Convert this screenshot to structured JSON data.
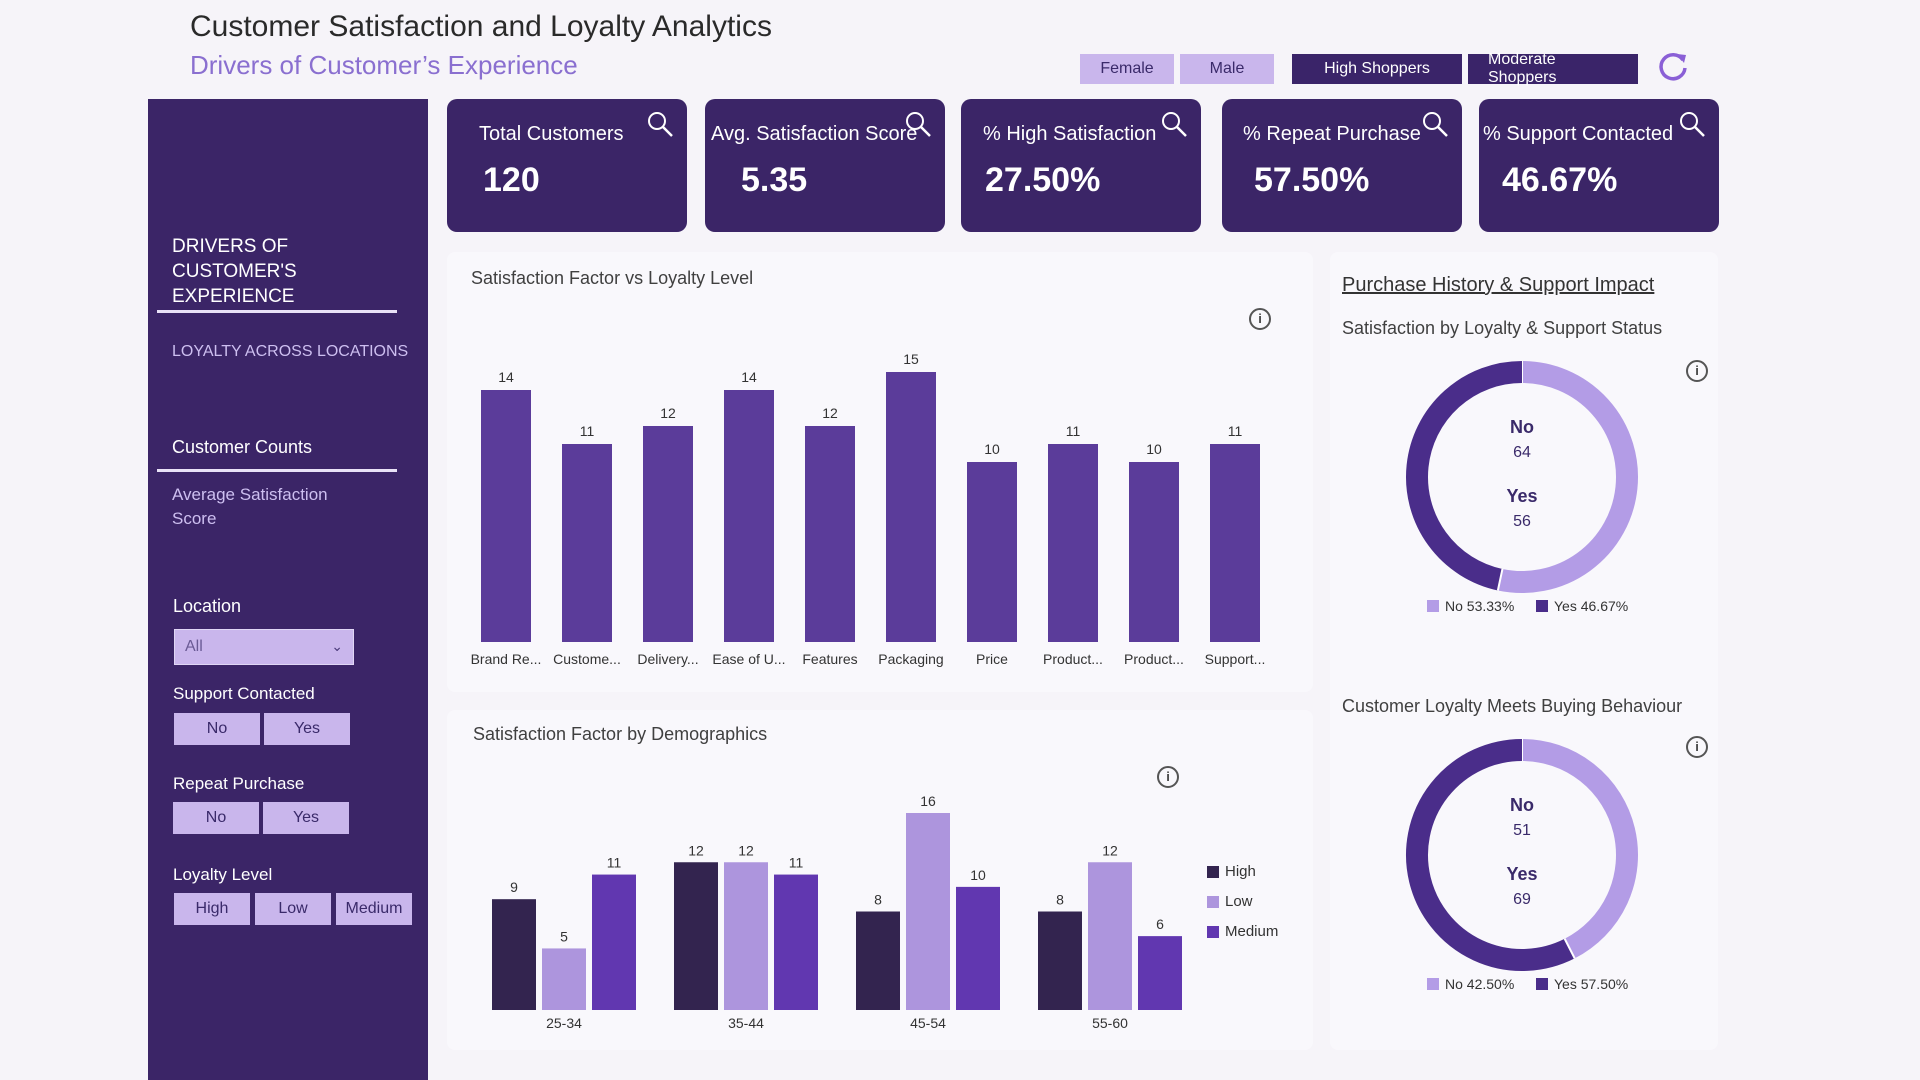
{
  "header": {
    "title": "Customer Satisfaction and Loyalty Analytics",
    "subtitle": "Drivers of Customer’s Experience"
  },
  "filters": {
    "female": "Female",
    "male": "Male",
    "high_shoppers": "High Shoppers",
    "moderate_shoppers": "Moderate Shoppers"
  },
  "sidebar": {
    "heading": "DRIVERS OF CUSTOMER'S EXPERIENCE",
    "loyalty_link": "LOYALTY ACROSS LOCATIONS",
    "customer_counts": "Customer Counts",
    "avg_satisfaction": "Average Satisfaction Score",
    "location_label": "Location",
    "location_value": "All",
    "support_label": "Support Contacted",
    "support_no": "No",
    "support_yes": "Yes",
    "repeat_label": "Repeat Purchase",
    "repeat_no": "No",
    "repeat_yes": "Yes",
    "loyalty_label": "Loyalty Level",
    "loyalty_high": "High",
    "loyalty_low": "Low",
    "loyalty_medium": "Medium"
  },
  "kpis": [
    {
      "label": "Total Customers",
      "value": "120"
    },
    {
      "label": "Avg. Satisfaction Score",
      "value": "5.35"
    },
    {
      "label": "% High Satisfaction",
      "value": "27.50%"
    },
    {
      "label": "% Repeat Purchase",
      "value": "57.50%"
    },
    {
      "label": "% Support Contacted",
      "value": "46.67%"
    }
  ],
  "colors": {
    "dark": "#3b2567",
    "bar": "#5b3c9a",
    "high": "#33244f",
    "low": "#ad95dd",
    "medium": "#6137b0",
    "donut_no": "#b39ce6",
    "donut_yes": "#4a2d8a"
  },
  "right_panel": {
    "title": "Purchase History & Support Impact"
  },
  "chart_data": [
    {
      "type": "bar",
      "title": "Satisfaction Factor vs Loyalty Level",
      "categories": [
        "Brand Re...",
        "Custome...",
        "Delivery...",
        "Ease of U...",
        "Features",
        "Packaging",
        "Price",
        "Product...",
        "Product...",
        "Support..."
      ],
      "values": [
        14,
        11,
        12,
        14,
        12,
        15,
        10,
        11,
        10,
        11
      ],
      "ylim": [
        0,
        15
      ]
    },
    {
      "type": "bar",
      "title": "Satisfaction Factor by Demographics",
      "categories": [
        "25-34",
        "35-44",
        "45-54",
        "55-60"
      ],
      "series": [
        {
          "name": "High",
          "values": [
            9,
            12,
            8,
            8
          ]
        },
        {
          "name": "Low",
          "values": [
            5,
            12,
            16,
            12
          ]
        },
        {
          "name": "Medium",
          "values": [
            11,
            11,
            10,
            6
          ]
        }
      ],
      "ylim": [
        0,
        16
      ]
    },
    {
      "type": "pie",
      "title": "Satisfaction by Loyalty & Support Status",
      "labels": [
        "No",
        "Yes"
      ],
      "values": [
        64,
        56
      ],
      "legend": [
        "No 53.33%",
        "Yes 46.67%"
      ]
    },
    {
      "type": "pie",
      "title": "Customer Loyalty Meets Buying Behaviour",
      "labels": [
        "No",
        "Yes"
      ],
      "values": [
        51,
        69
      ],
      "legend": [
        "No 42.50%",
        "Yes 57.50%"
      ]
    }
  ]
}
